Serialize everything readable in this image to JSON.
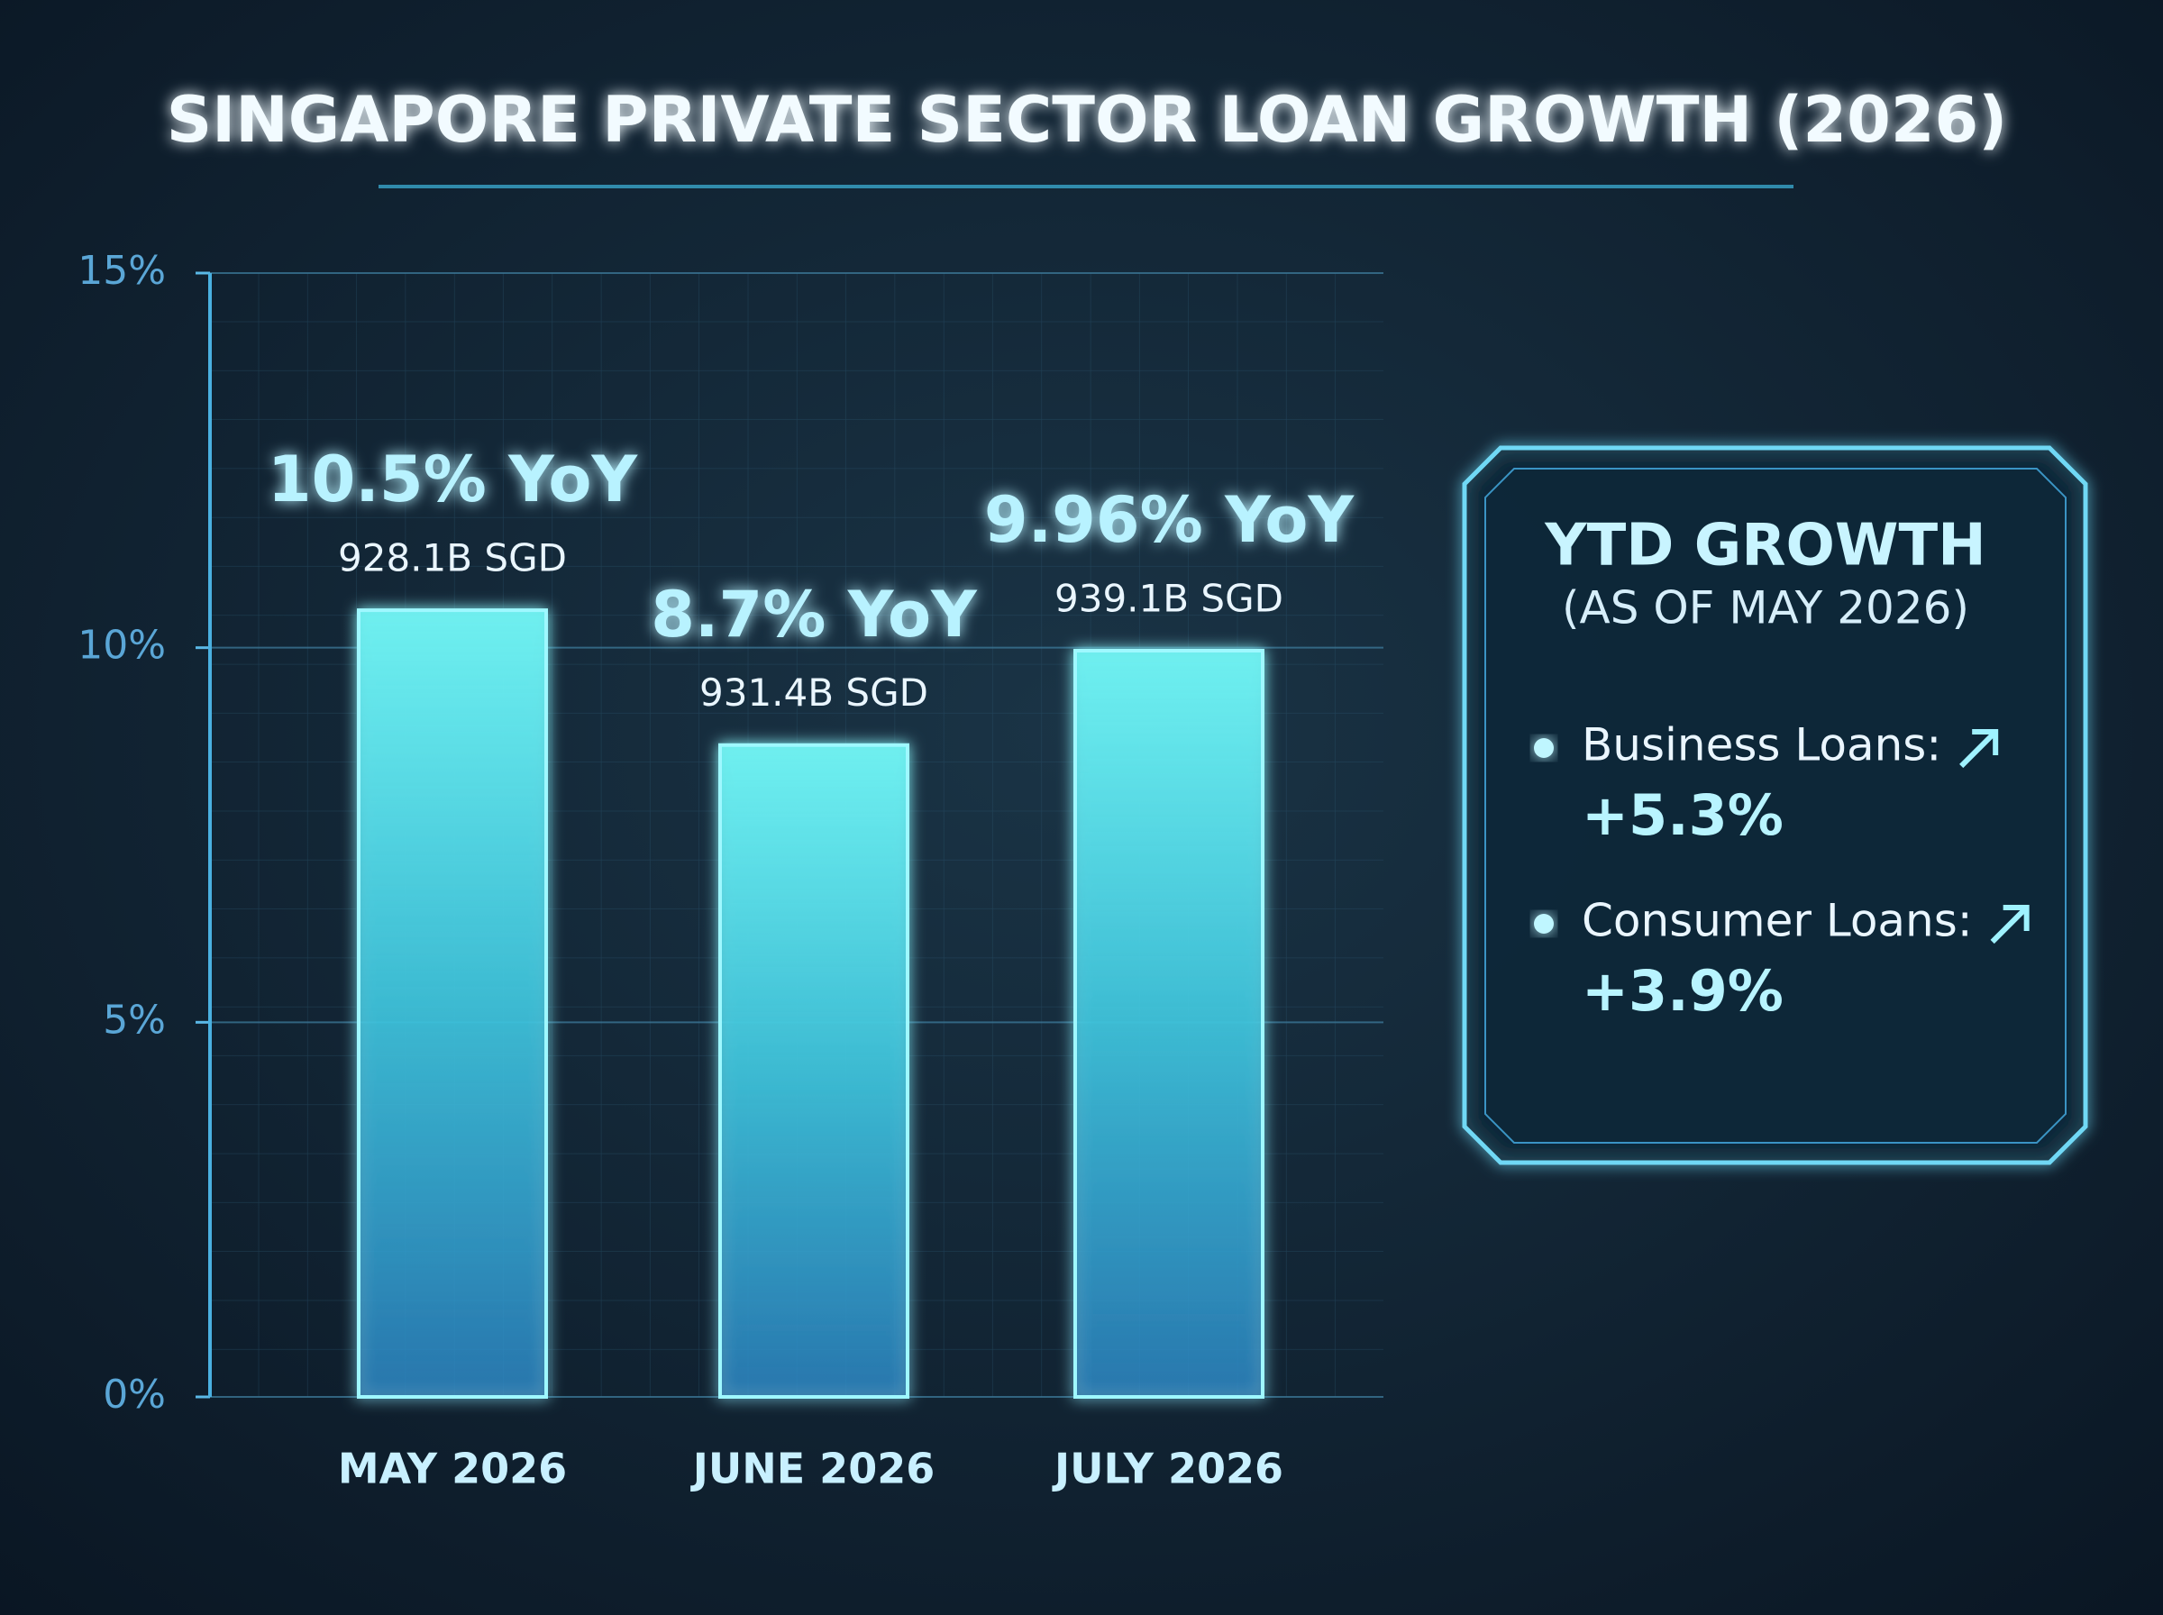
{
  "chart_data": {
    "type": "bar",
    "title": "SINGAPORE PRIVATE SECTOR LOAN GROWTH (2026)",
    "categories": [
      "MAY 2026",
      "JUNE 2026",
      "JULY 2026"
    ],
    "values": [
      10.5,
      8.7,
      9.96
    ],
    "value_labels": [
      "10.5% YoY",
      "8.7% YoY",
      "9.96% YoY"
    ],
    "amounts": [
      928.1,
      931.4,
      939.1
    ],
    "amount_labels": [
      "928.1B SGD",
      "931.4B SGD",
      "939.1B SGD"
    ],
    "color": "#5fe6ee",
    "ylim": [
      0,
      15
    ],
    "yticks": [
      {
        "value": 0,
        "label": "0%"
      },
      {
        "value": 5,
        "label": "5%"
      },
      {
        "value": 10,
        "label": "10%"
      },
      {
        "value": 15,
        "label": "15%"
      }
    ],
    "grid": true
  },
  "panel": {
    "title": "YTD GROWTH",
    "subtitle": "(AS OF MAY 2026)",
    "items": [
      {
        "label": "Business Loans:",
        "value": 5.3,
        "value_label": "+5.3%"
      },
      {
        "label": "Consumer Loans:",
        "value": 3.9,
        "value_label": "+3.9%"
      }
    ]
  }
}
